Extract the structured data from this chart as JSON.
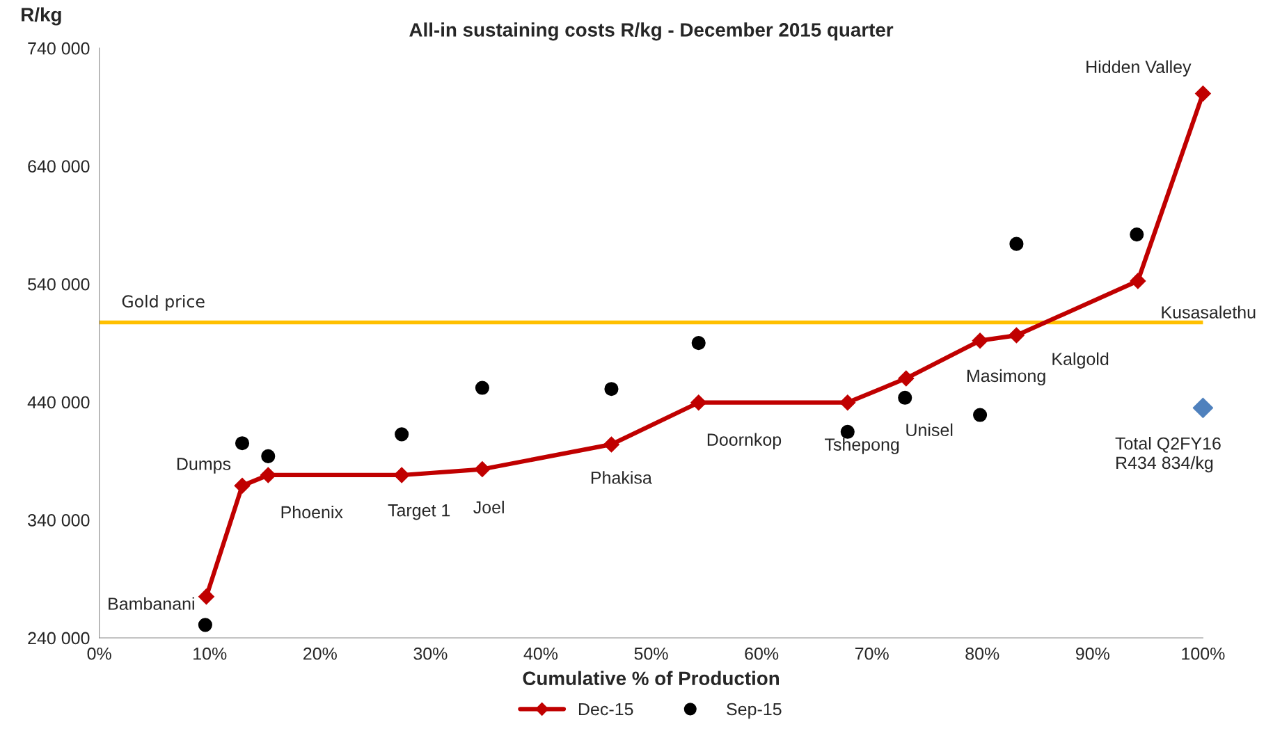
{
  "chart_data": {
    "type": "line",
    "title": "All-in sustaining costs R/kg - December 2015 quarter",
    "xlabel": "Cumulative % of Production",
    "ylabel": "R/kg",
    "xlim": [
      0,
      100
    ],
    "xticks": [
      {
        "value": 0,
        "label": "0%"
      },
      {
        "value": 10,
        "label": "10%"
      },
      {
        "value": 20,
        "label": "20%"
      },
      {
        "value": 30,
        "label": "30%"
      },
      {
        "value": 40,
        "label": "40%"
      },
      {
        "value": 50,
        "label": "50%"
      },
      {
        "value": 60,
        "label": "60%"
      },
      {
        "value": 70,
        "label": "70%"
      },
      {
        "value": 80,
        "label": "80%"
      },
      {
        "value": 90,
        "label": "90%"
      },
      {
        "value": 100,
        "label": "100%"
      }
    ],
    "ylim": [
      240000,
      740000
    ],
    "yticks": [
      {
        "value": 240000,
        "label": "240 000"
      },
      {
        "value": 340000,
        "label": "340 000"
      },
      {
        "value": 440000,
        "label": "440 000"
      },
      {
        "value": 540000,
        "label": "540 000"
      },
      {
        "value": 640000,
        "label": "640 000"
      },
      {
        "value": 740000,
        "label": "740 000"
      }
    ],
    "grid": false,
    "legend": "bottom",
    "series": [
      {
        "name": "Dec-15",
        "color": "#c00000",
        "marker": "diamond",
        "x": [
          9.7,
          12.95,
          15.3,
          27.4,
          34.7,
          46.4,
          54.3,
          67.8,
          73.1,
          79.8,
          83.1,
          94.1,
          100
        ],
        "values": [
          275000,
          369000,
          378000,
          378000,
          383000,
          404000,
          439500,
          439500,
          460000,
          492000,
          496500,
          542600,
          701500
        ]
      },
      {
        "name": "Sep-15",
        "type": "scatter",
        "color": "#000000",
        "marker": "circle",
        "x": [
          9.6,
          12.95,
          15.3,
          27.4,
          34.7,
          46.4,
          54.3,
          67.8,
          73.0,
          79.8,
          83.1,
          94.0
        ],
        "values": [
          251000,
          405000,
          394000,
          412600,
          452000,
          451000,
          490000,
          414700,
          443600,
          429000,
          574000,
          582000
        ]
      },
      {
        "type": "scatter",
        "color": "#4f81bd",
        "marker": "diamond",
        "x": [
          100
        ],
        "values": [
          435000
        ]
      }
    ],
    "ref_lines": [
      {
        "axis": "y",
        "value": 507500,
        "label": "Gold price",
        "color": "#ffc000"
      }
    ],
    "annotations": [
      {
        "text": "Bambanani",
        "x": 9.7,
        "y": 275000
      },
      {
        "text": "Dumps",
        "x": 12.95,
        "y": 369000
      },
      {
        "text": "Phoenix",
        "x": 15.3,
        "y": 378000
      },
      {
        "text": "Target 1",
        "x": 27.4,
        "y": 378000
      },
      {
        "text": "Joel",
        "x": 34.7,
        "y": 383000
      },
      {
        "text": "Phakisa",
        "x": 46.4,
        "y": 404000
      },
      {
        "text": "Doornkop",
        "x": 54.3,
        "y": 439500
      },
      {
        "text": "Tshepong",
        "x": 67.8,
        "y": 439500
      },
      {
        "text": "Unisel",
        "x": 73.1,
        "y": 460000
      },
      {
        "text": "Masimong",
        "x": 79.8,
        "y": 492000
      },
      {
        "text": "Kalgold",
        "x": 83.1,
        "y": 496500
      },
      {
        "text": "Kusasalethu",
        "x": 94.1,
        "y": 542600
      },
      {
        "text": "Hidden Valley",
        "x": 100,
        "y": 701500
      },
      {
        "text": "Total Q2FY16\nR434 834/kg",
        "x": 100,
        "y": 435000
      }
    ]
  }
}
